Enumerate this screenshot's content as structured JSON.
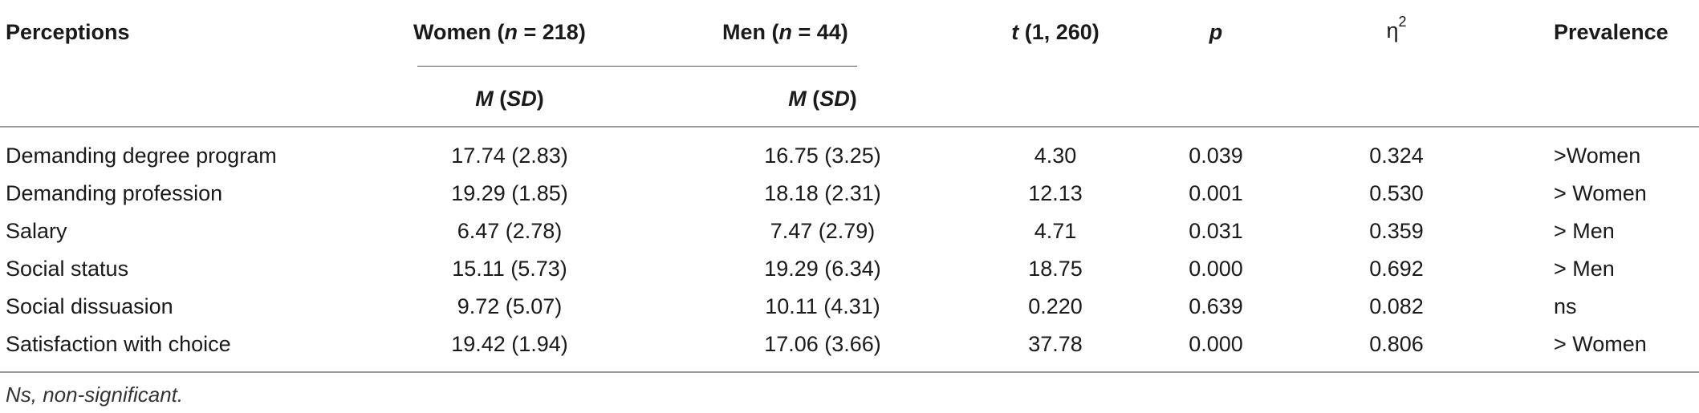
{
  "header": {
    "perceptions": "Perceptions",
    "women_prefix": "Women (",
    "women_n": "n",
    "women_suffix": " = 218)",
    "men_prefix": "Men (",
    "men_n": "n",
    "men_suffix": " = 44)",
    "t_letter": "t",
    "t_suffix": " (1, 260)",
    "p": "p",
    "eta": "η",
    "eta_sup": "2",
    "prevalence": "Prevalence",
    "m_letter": "M",
    "sd_open": " (",
    "sd": "SD",
    "sd_close": ")"
  },
  "rows": [
    {
      "perception": "Demanding degree program",
      "women": "17.74 (2.83)",
      "men": "16.75 (3.25)",
      "t": "4.30",
      "p": "0.039",
      "eta2": "0.324",
      "prevalence": ">Women"
    },
    {
      "perception": "Demanding profession",
      "women": "19.29 (1.85)",
      "men": "18.18 (2.31)",
      "t": "12.13",
      "p": "0.001",
      "eta2": "0.530",
      "prevalence": "> Women"
    },
    {
      "perception": "Salary",
      "women": "6.47 (2.78)",
      "men": "7.47 (2.79)",
      "t": "4.71",
      "p": "0.031",
      "eta2": "0.359",
      "prevalence": "> Men"
    },
    {
      "perception": "Social status",
      "women": "15.11 (5.73)",
      "men": "19.29 (6.34)",
      "t": "18.75",
      "p": "0.000",
      "eta2": "0.692",
      "prevalence": "> Men"
    },
    {
      "perception": "Social dissuasion",
      "women": "9.72 (5.07)",
      "men": "10.11 (4.31)",
      "t": "0.220",
      "p": "0.639",
      "eta2": "0.082",
      "prevalence": "ns"
    },
    {
      "perception": "Satisfaction with choice",
      "women": "19.42 (1.94)",
      "men": "17.06 (3.66)",
      "t": "37.78",
      "p": "0.000",
      "eta2": "0.806",
      "prevalence": "> Women"
    }
  ],
  "footnote": "Ns, non-significant."
}
